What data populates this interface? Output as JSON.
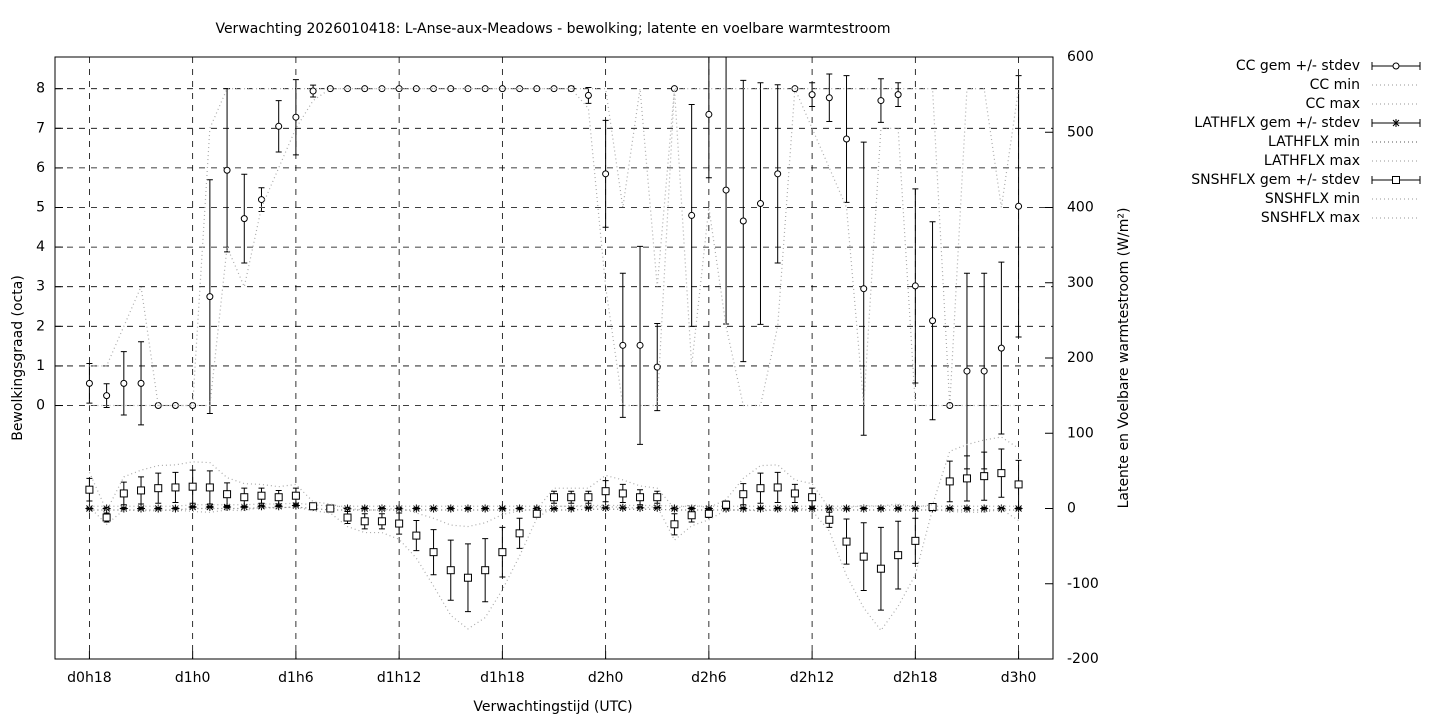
{
  "chart_data": {
    "type": "errorbar",
    "title": "Verwachting 2026010418: L-Anse-aux-Meadows - bewolking; latente en voelbare warmtestroom",
    "xlabel": "Verwachtingstijd (UTC)",
    "ylabel": "Bewolkingsgraad (octa)",
    "y2label": "Latente en Voelbare warmtestroom (W/m²)",
    "grid": true,
    "legend": "outside-right",
    "x": [
      0,
      1,
      2,
      3,
      4,
      5,
      6,
      7,
      8,
      9,
      10,
      11,
      12,
      13,
      14,
      15,
      16,
      17,
      18,
      19,
      20,
      21,
      22,
      23,
      24,
      25,
      26,
      27,
      28,
      29,
      30,
      31,
      32,
      33,
      34,
      35,
      36,
      37,
      38,
      39,
      40,
      41,
      42,
      43,
      44,
      45,
      46,
      47,
      48,
      49,
      50,
      51,
      52,
      53,
      54
    ],
    "xlim": [
      -2,
      56
    ],
    "xticks": [
      {
        "value": 0,
        "label": "d0h18"
      },
      {
        "value": 6,
        "label": "d1h0"
      },
      {
        "value": 12,
        "label": "d1h6"
      },
      {
        "value": 18,
        "label": "d1h12"
      },
      {
        "value": 24,
        "label": "d1h18"
      },
      {
        "value": 30,
        "label": "d2h0"
      },
      {
        "value": 36,
        "label": "d2h6"
      },
      {
        "value": 42,
        "label": "d2h12"
      },
      {
        "value": 48,
        "label": "d2h18"
      },
      {
        "value": 54,
        "label": "d3h0"
      }
    ],
    "ylim": [
      -6.4,
      8.8
    ],
    "yticks": [
      0,
      1,
      2,
      3,
      4,
      5,
      6,
      7,
      8
    ],
    "y2lim": [
      -200,
      600
    ],
    "y2ticks": [
      -200,
      -100,
      0,
      100,
      200,
      300,
      400,
      500,
      600
    ],
    "series": [
      {
        "name": "CC gem +/- stdev",
        "color": "#000000",
        "style": "errorbar",
        "marker": "circle",
        "values": [
          0.56,
          0.25,
          0.56,
          0.56,
          0,
          0,
          0,
          2.75,
          5.94,
          4.72,
          5.2,
          7.05,
          7.28,
          7.94,
          8,
          8,
          8,
          8,
          8,
          8,
          8,
          8,
          8,
          8,
          8,
          8,
          8,
          8,
          8,
          7.83,
          5.85,
          1.52,
          1.52,
          0.97,
          8,
          4.8,
          7.35,
          5.44,
          4.66,
          5.1,
          5.85,
          8,
          7.85,
          7.77,
          6.73,
          2.95,
          7.7,
          7.85,
          3.02,
          2.14,
          0,
          0.87,
          0.87,
          1.45,
          5.03
        ],
        "errors": [
          0.5,
          0.3,
          0.8,
          1.05,
          0,
          0,
          0,
          2.95,
          2.06,
          1.12,
          0.3,
          0.65,
          0.95,
          0.15,
          0,
          0,
          0,
          0,
          0,
          0,
          0,
          0,
          0,
          0,
          0,
          0,
          0,
          0,
          0.06,
          0.2,
          1.35,
          1.82,
          2.5,
          1.1,
          0,
          2.8,
          1.6,
          3.38,
          3.55,
          3.05,
          2.25,
          0,
          0.3,
          0.6,
          1.6,
          3.7,
          0.55,
          0.3,
          2.45,
          2.5,
          0,
          2.47,
          2.47,
          2.17,
          3.3
        ]
      },
      {
        "name": "CC min",
        "color": "#aaaaaa",
        "style": "dotted",
        "values": [
          0,
          0,
          0,
          0,
          0,
          0,
          0,
          0,
          4,
          3,
          5,
          6,
          7,
          7.7,
          8,
          8,
          8,
          8,
          8,
          8,
          8,
          8,
          8,
          8,
          8,
          8,
          8,
          8,
          8,
          7.5,
          3,
          0,
          0,
          0,
          8,
          1,
          5,
          2,
          0,
          0,
          2,
          8,
          7,
          6,
          5,
          0,
          7,
          7,
          0,
          0,
          0,
          0,
          0,
          0,
          0
        ]
      },
      {
        "name": "CC max",
        "color": "#aaaaaa",
        "style": "dotted",
        "values": [
          1,
          1,
          2,
          3,
          0,
          0,
          0,
          7,
          8,
          8,
          8,
          8,
          8,
          8,
          8,
          8,
          8,
          8,
          8,
          8,
          8,
          8,
          8,
          8,
          8,
          8,
          8,
          8,
          8,
          8,
          8,
          5,
          8,
          3,
          8,
          8,
          8,
          8,
          8,
          8,
          8,
          8,
          8,
          8,
          8,
          8,
          8,
          8,
          8,
          8,
          0,
          8,
          8,
          5,
          8
        ]
      },
      {
        "name": "LATHFLX gem +/- stdev",
        "color": "#000000",
        "style": "errorbar",
        "marker": "star",
        "axis": "y2",
        "values": [
          0,
          0,
          0,
          0,
          0,
          0,
          2,
          2,
          2,
          2,
          3,
          3,
          4,
          2,
          0,
          0,
          0,
          0,
          0,
          0,
          0,
          0,
          0,
          0,
          0,
          0,
          0,
          0,
          0,
          1,
          1,
          1,
          1,
          1,
          0,
          0,
          0,
          0,
          0,
          0,
          0,
          0,
          0,
          0,
          0,
          0,
          0,
          0,
          0,
          0,
          0,
          0,
          0,
          0,
          0
        ],
        "errors": [
          1,
          1,
          1,
          1,
          1,
          1,
          1,
          1,
          1,
          1,
          1,
          1,
          1,
          1,
          1,
          1,
          1,
          1,
          1,
          1,
          1,
          1,
          1,
          1,
          1,
          1,
          1,
          1,
          1,
          1,
          1,
          1,
          1,
          1,
          1,
          1,
          1,
          1,
          1,
          1,
          1,
          1,
          1,
          1,
          1,
          1,
          1,
          1,
          1,
          1,
          1,
          1,
          1,
          1,
          1
        ]
      },
      {
        "name": "LATHFLX min",
        "color": "#777777",
        "style": "dotted",
        "axis": "y2",
        "values": [
          -2,
          -2,
          -2,
          -2,
          -2,
          -2,
          0,
          0,
          0,
          0,
          1,
          1,
          2,
          0,
          -2,
          -2,
          -2,
          -2,
          -2,
          -2,
          -2,
          -2,
          -2,
          -2,
          -2,
          -2,
          -2,
          -2,
          -2,
          -1,
          -1,
          -1,
          -1,
          -1,
          -2,
          -2,
          -2,
          -2,
          -2,
          -2,
          -2,
          -2,
          -2,
          -2,
          -2,
          -2,
          -2,
          -2,
          -2,
          -2,
          -2,
          -2,
          -2,
          -2,
          -2
        ]
      },
      {
        "name": "LATHFLX max",
        "color": "#aaaaaa",
        "style": "dotted",
        "axis": "y2",
        "values": [
          3,
          3,
          3,
          3,
          3,
          3,
          5,
          5,
          5,
          5,
          6,
          6,
          7,
          5,
          3,
          3,
          3,
          3,
          3,
          3,
          3,
          3,
          3,
          3,
          3,
          3,
          3,
          3,
          3,
          4,
          4,
          4,
          4,
          4,
          3,
          3,
          3,
          3,
          3,
          3,
          3,
          3,
          3,
          3,
          3,
          3,
          3,
          3,
          3,
          3,
          3,
          3,
          3,
          3,
          3
        ]
      },
      {
        "name": "SNSHFLX gem +/- stdev",
        "color": "#000000",
        "style": "errorbar",
        "marker": "square",
        "axis": "y2",
        "values": [
          25,
          -12,
          20,
          24,
          27,
          28,
          29,
          28,
          19,
          15,
          17,
          15,
          17,
          3,
          0,
          -12,
          -17,
          -17,
          -20,
          -36,
          -58,
          -82,
          -92,
          -82,
          -58,
          -33,
          -7,
          15,
          15,
          15,
          23,
          20,
          15,
          15,
          -21,
          -9,
          -7,
          5,
          19,
          27,
          28,
          20,
          15,
          -15,
          -44,
          -64,
          -80,
          -62,
          -43,
          2,
          36,
          40,
          43,
          47,
          32
        ],
        "errors": [
          15,
          6,
          15,
          18,
          20,
          20,
          22,
          22,
          15,
          12,
          10,
          9,
          10,
          4,
          4,
          8,
          10,
          10,
          14,
          20,
          30,
          40,
          45,
          42,
          33,
          20,
          4,
          8,
          8,
          8,
          14,
          12,
          10,
          8,
          14,
          9,
          5,
          5,
          14,
          20,
          20,
          12,
          12,
          10,
          30,
          45,
          55,
          45,
          30,
          2,
          27,
          30,
          32,
          32,
          32
        ]
      },
      {
        "name": "SNSHFLX min",
        "color": "#aaaaaa",
        "style": "dotted",
        "axis": "y2",
        "values": [
          2,
          -21,
          -2,
          -3,
          -3,
          -2,
          -4,
          -5,
          -2,
          -3,
          2,
          1,
          2,
          -3,
          -6,
          -24,
          -32,
          -32,
          -41,
          -66,
          -103,
          -142,
          -160,
          -145,
          -108,
          -63,
          -13,
          3,
          3,
          3,
          2,
          2,
          0,
          3,
          -42,
          -23,
          -15,
          -2,
          -2,
          -3,
          -2,
          2,
          -3,
          -30,
          -89,
          -132,
          -162,
          -130,
          -88,
          -1,
          -4,
          -5,
          -5,
          -1,
          -16
        ]
      },
      {
        "name": "SNSHFLX max",
        "color": "#aaaaaa",
        "style": "dotted",
        "axis": "y2",
        "values": [
          48,
          -3,
          42,
          51,
          57,
          58,
          62,
          61,
          41,
          33,
          32,
          29,
          32,
          9,
          6,
          0,
          -2,
          -2,
          1,
          -6,
          -13,
          -22,
          -24,
          -19,
          -8,
          -3,
          -1,
          27,
          27,
          27,
          44,
          38,
          30,
          27,
          0,
          5,
          1,
          12,
          40,
          57,
          58,
          38,
          33,
          0,
          1,
          4,
          3,
          6,
          2,
          5,
          76,
          85,
          91,
          95,
          80
        ]
      }
    ]
  }
}
